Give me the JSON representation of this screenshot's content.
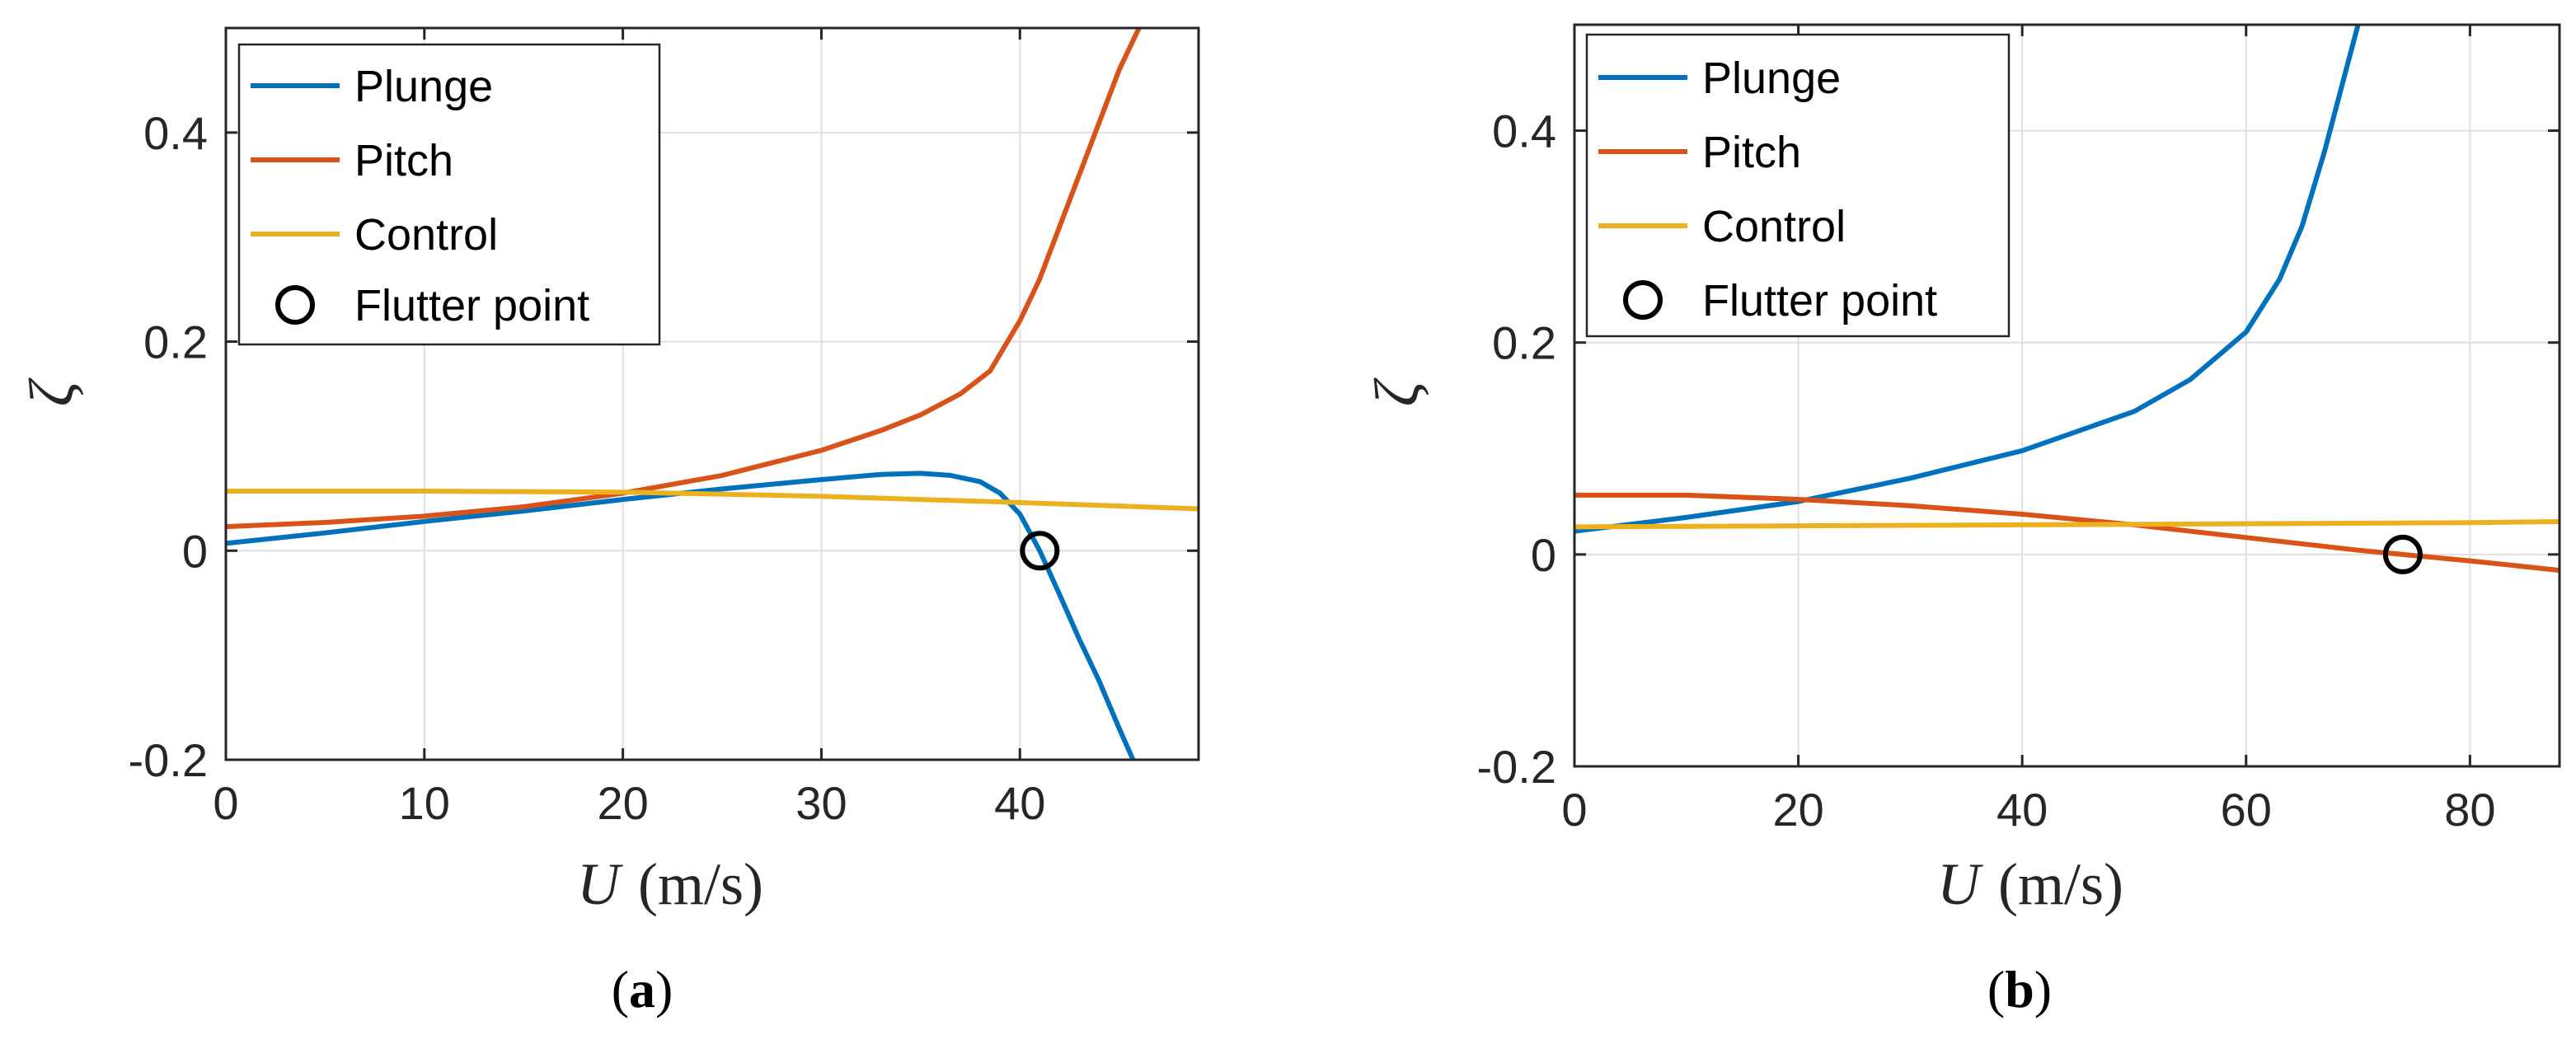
{
  "chart_data": [
    {
      "panel": "a",
      "caption": {
        "open": "(",
        "letter": "a",
        "close": ")"
      },
      "type": "line",
      "xlabel": {
        "var": "U",
        "unit": "(m/s)"
      },
      "ylabel": "ζ",
      "xlim": [
        0,
        49
      ],
      "ylim": [
        -0.2,
        0.5
      ],
      "xticks": [
        0,
        10,
        20,
        30,
        40
      ],
      "xtick_labels": [
        "0",
        "10",
        "20",
        "30",
        "40"
      ],
      "yticks": [
        -0.2,
        0,
        0.2,
        0.4
      ],
      "ytick_labels": [
        "-0.2",
        "0",
        "0.2",
        "0.4"
      ],
      "grid": true,
      "legend": [
        "Plunge",
        "Pitch",
        "Control",
        "Flutter point"
      ],
      "legend_position": "top-left",
      "series": [
        {
          "name": "Plunge",
          "color": "#0072BD",
          "x": [
            0,
            5,
            10,
            15,
            20,
            25,
            30,
            33,
            35,
            36.5,
            38,
            39,
            40,
            41,
            42,
            43,
            44,
            45,
            45.7
          ],
          "y": [
            0.007,
            0.017,
            0.028,
            0.038,
            0.049,
            0.059,
            0.068,
            0.073,
            0.074,
            0.072,
            0.066,
            0.055,
            0.035,
            0.0,
            -0.042,
            -0.085,
            -0.125,
            -0.17,
            -0.2
          ]
        },
        {
          "name": "Pitch",
          "color": "#D95319",
          "x": [
            0,
            5,
            10,
            15,
            20,
            25,
            30,
            33,
            35,
            37,
            38.5,
            40,
            41,
            42,
            43,
            44,
            45,
            46
          ],
          "y": [
            0.023,
            0.027,
            0.033,
            0.042,
            0.055,
            0.072,
            0.096,
            0.115,
            0.13,
            0.15,
            0.172,
            0.22,
            0.26,
            0.31,
            0.36,
            0.41,
            0.46,
            0.5
          ]
        },
        {
          "name": "Control",
          "color": "#EDB120",
          "x": [
            0,
            10,
            20,
            30,
            40,
            49
          ],
          "y": [
            0.057,
            0.057,
            0.056,
            0.052,
            0.046,
            0.04
          ]
        }
      ],
      "flutter_point": {
        "name": "Flutter point",
        "x": 41,
        "y": 0
      }
    },
    {
      "panel": "b",
      "caption": {
        "open": "(",
        "letter": "b",
        "close": ")"
      },
      "type": "line",
      "xlabel": {
        "var": "U",
        "unit": "(m/s)"
      },
      "ylabel": "ζ",
      "xlim": [
        0,
        88
      ],
      "ylim": [
        -0.2,
        0.5
      ],
      "xticks": [
        0,
        20,
        40,
        60,
        80
      ],
      "xtick_labels": [
        "0",
        "20",
        "40",
        "60",
        "80"
      ],
      "yticks": [
        -0.2,
        0,
        0.2,
        0.4
      ],
      "ytick_labels": [
        "-0.2",
        "0",
        "0.2",
        "0.4"
      ],
      "grid": true,
      "legend": [
        "Plunge",
        "Pitch",
        "Control",
        "Flutter point"
      ],
      "legend_position": "top-left",
      "series": [
        {
          "name": "Plunge",
          "color": "#0072BD",
          "x": [
            0,
            10,
            20,
            30,
            40,
            50,
            55,
            60,
            63,
            65,
            67,
            68.5,
            69.5,
            70
          ],
          "y": [
            0.022,
            0.035,
            0.05,
            0.072,
            0.098,
            0.135,
            0.165,
            0.21,
            0.26,
            0.31,
            0.38,
            0.44,
            0.48,
            0.5
          ]
        },
        {
          "name": "Pitch",
          "color": "#D95319",
          "x": [
            0,
            10,
            20,
            30,
            40,
            50,
            60,
            70,
            74,
            80,
            88
          ],
          "y": [
            0.056,
            0.056,
            0.052,
            0.046,
            0.038,
            0.028,
            0.016,
            0.004,
            0.0,
            -0.006,
            -0.015
          ]
        },
        {
          "name": "Control",
          "color": "#EDB120",
          "x": [
            0,
            20,
            40,
            60,
            80,
            88
          ],
          "y": [
            0.026,
            0.027,
            0.028,
            0.029,
            0.03,
            0.031
          ]
        }
      ],
      "flutter_point": {
        "name": "Flutter point",
        "x": 74,
        "y": 0
      }
    }
  ]
}
